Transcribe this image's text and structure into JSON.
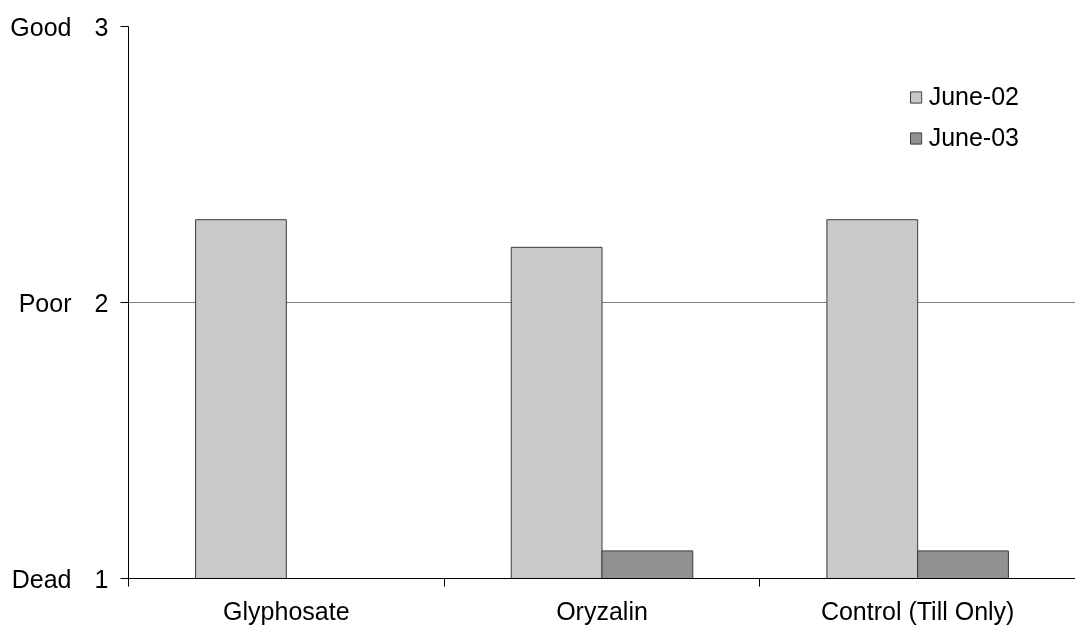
{
  "chart_data": {
    "type": "bar",
    "categories": [
      "Glyphosate",
      "Oryzalin",
      "Control (Till Only)"
    ],
    "series": [
      {
        "name": "June-02",
        "color": "#c9c9c9",
        "values": [
          2.3,
          2.2,
          2.3
        ]
      },
      {
        "name": "June-03",
        "color": "#919191",
        "values": [
          null,
          1.1,
          1.1
        ]
      }
    ],
    "ylim": [
      1,
      3
    ],
    "yticks": [
      1,
      2,
      3
    ],
    "annotations": [
      "Dead",
      "Poor",
      "Good"
    ],
    "grid": "y",
    "legend": "top right"
  }
}
